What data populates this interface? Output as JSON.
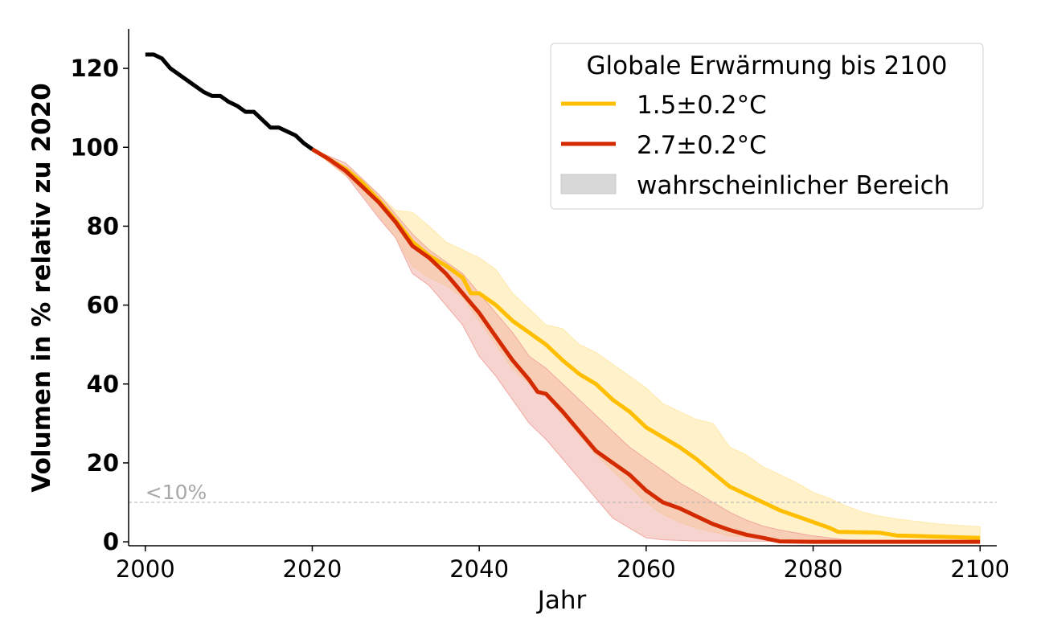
{
  "chart_data": {
    "type": "line",
    "xlabel": "Jahr",
    "ylabel": "Volumen in % relativ zu 2020",
    "xlim": [
      1998,
      2102
    ],
    "ylim": [
      -1,
      130
    ],
    "xticks": [
      2000,
      2020,
      2040,
      2060,
      2080,
      2100
    ],
    "yticks": [
      0,
      20,
      40,
      60,
      80,
      100,
      120
    ],
    "threshold": {
      "value": 10,
      "label": "<10%"
    },
    "legend": {
      "title": "Globale Erwärmung bis 2100",
      "placement": "top-right",
      "entries": [
        "1.5±0.2°C",
        "2.7±0.2°C",
        "wahrscheinlicher Bereich"
      ]
    },
    "colors": {
      "historical": "#000000",
      "s15": "#FFBF00",
      "s27": "#D42A00",
      "band15": "#FFE9A8",
      "band27": "#F0A8A0",
      "threshold": "#b0b0b0",
      "band_legend": "#d8d8d8"
    },
    "historical": {
      "x": [
        2000,
        2001,
        2002,
        2003,
        2004,
        2005,
        2006,
        2007,
        2008,
        2009,
        2010,
        2011,
        2012,
        2013,
        2014,
        2015,
        2016,
        2017,
        2018,
        2019,
        2020
      ],
      "y": [
        123.5,
        123.5,
        122.5,
        120,
        118.5,
        117,
        115.5,
        114,
        113,
        113,
        111.5,
        110.5,
        109,
        109,
        107,
        105,
        105,
        104,
        103,
        101,
        99.5
      ]
    },
    "series": [
      {
        "name": "1.5±0.2°C",
        "x": [
          2020,
          2022,
          2024,
          2026,
          2028,
          2030,
          2032,
          2034,
          2036,
          2038,
          2039,
          2040,
          2042,
          2044,
          2046,
          2048,
          2050,
          2052,
          2054,
          2056,
          2058,
          2060,
          2062,
          2064,
          2066,
          2068,
          2070,
          2072,
          2074,
          2076,
          2078,
          2080,
          2082,
          2083,
          2088,
          2090,
          2095,
          2100
        ],
        "y": [
          99.5,
          97,
          94.5,
          91,
          86.5,
          81.5,
          76,
          72.5,
          70,
          67,
          63,
          63,
          60,
          56,
          53,
          50,
          46,
          42.5,
          40,
          36,
          33,
          29,
          26.5,
          24,
          21,
          17.5,
          14,
          12,
          10,
          8,
          6.5,
          5,
          3.5,
          2.5,
          2.3,
          1.6,
          1.3,
          1
        ],
        "band_upper": {
          "x": [
            2020,
            2025,
            2030,
            2032,
            2034,
            2036,
            2040,
            2042,
            2044,
            2046,
            2048,
            2050,
            2052,
            2054,
            2056,
            2058,
            2060,
            2062,
            2064,
            2066,
            2068,
            2070,
            2072,
            2074,
            2076,
            2078,
            2080,
            2082,
            2084,
            2086,
            2088,
            2090,
            2095,
            2100
          ],
          "y": [
            99.5,
            94,
            84,
            83.5,
            80,
            76,
            72,
            69,
            63,
            59,
            55,
            54,
            50,
            48,
            45,
            42,
            39,
            35,
            33,
            31,
            30,
            24,
            22,
            19,
            17,
            15,
            12.5,
            11,
            9,
            7.5,
            6.5,
            5.8,
            4.5,
            3.8
          ]
        },
        "band_lower": {
          "x": [
            2020,
            2025,
            2030,
            2032,
            2034,
            2036,
            2038,
            2040,
            2042,
            2044,
            2046,
            2048,
            2050,
            2052,
            2054,
            2056,
            2058,
            2060,
            2062,
            2064,
            2066,
            2068,
            2070,
            2074,
            2080,
            2100
          ],
          "y": [
            99.5,
            91,
            77,
            70,
            67,
            65,
            62,
            56,
            50,
            44,
            40,
            37,
            32,
            27,
            22,
            18,
            14,
            10,
            7,
            5,
            3.5,
            2.5,
            1.5,
            0.8,
            0.3,
            0.2
          ]
        }
      },
      {
        "name": "2.7±0.2°C",
        "x": [
          2020,
          2022,
          2024,
          2026,
          2028,
          2030,
          2032,
          2034,
          2036,
          2038,
          2040,
          2042,
          2044,
          2046,
          2047,
          2048,
          2050,
          2052,
          2054,
          2056,
          2058,
          2060,
          2062,
          2064,
          2066,
          2068,
          2070,
          2072,
          2074,
          2076,
          2080,
          2090,
          2100
        ],
        "y": [
          99.5,
          97,
          94,
          90,
          86,
          81,
          75,
          72,
          68,
          63,
          58,
          52,
          46,
          41,
          38,
          37.5,
          33,
          28,
          23,
          20,
          17,
          13,
          10,
          8.5,
          6.5,
          4.5,
          3,
          1.8,
          1,
          0.1,
          0,
          0,
          0
        ],
        "band_upper": {
          "x": [
            2020,
            2024,
            2028,
            2030,
            2032,
            2034,
            2036,
            2038,
            2040,
            2042,
            2044,
            2046,
            2048,
            2050,
            2052,
            2054,
            2056,
            2058,
            2060,
            2062,
            2064,
            2066,
            2068,
            2070,
            2072,
            2074,
            2076,
            2080,
            2084,
            2090,
            2100
          ],
          "y": [
            99.5,
            96,
            88,
            83,
            78,
            74,
            71,
            68,
            63,
            58,
            53,
            47,
            44,
            40,
            36,
            32,
            28,
            24,
            21,
            18,
            15,
            12.5,
            10,
            7.5,
            5.5,
            4,
            3,
            1.5,
            0.5,
            0.1,
            0
          ]
        },
        "band_lower": {
          "x": [
            2020,
            2024,
            2028,
            2030,
            2032,
            2034,
            2036,
            2038,
            2040,
            2042,
            2044,
            2046,
            2048,
            2050,
            2052,
            2054,
            2056,
            2058,
            2060,
            2062,
            2066,
            2100
          ],
          "y": [
            99.5,
            93,
            82,
            77,
            68,
            65,
            60,
            55,
            47,
            42,
            36,
            30,
            26,
            21,
            16,
            11,
            6,
            3.5,
            1,
            0.5,
            0.2,
            0
          ]
        }
      }
    ]
  }
}
